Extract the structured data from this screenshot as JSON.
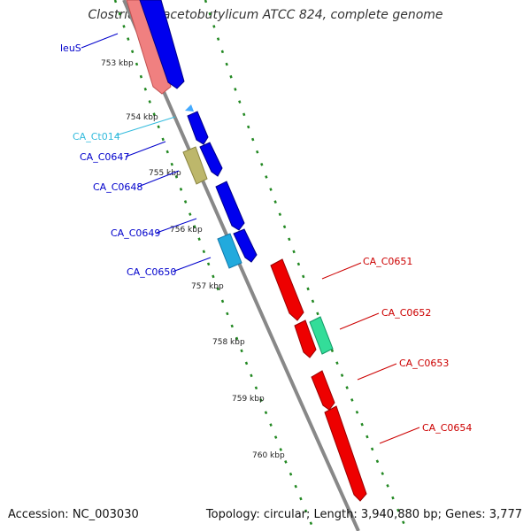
{
  "title": "Clostridium acetobutylicum ATCC 824, complete genome",
  "footer": {
    "accession": "Accession: NC_003030",
    "summary": "Topology: circular; Length: 3,940,880 bp; Genes: 3,777"
  },
  "ticks": [
    "753 kbp",
    "754 kbp",
    "755 kbp",
    "756 kbp",
    "757 kbp",
    "758 kbp",
    "759 kbp",
    "760 kbp"
  ],
  "genes": [
    {
      "id": "leuS",
      "color": "#0000cc",
      "feature_color": "#f08080",
      "feature_icon": "arrow-block-icon"
    },
    {
      "id": "CA_Ct014",
      "color": "#33bbdd",
      "feature_color": "#44aaff",
      "feature_icon": "trna-arrow-icon"
    },
    {
      "id": "CA_C0647",
      "color": "#0000cc",
      "feature_color": "#0000ee",
      "feature_icon": "arrow-block-icon"
    },
    {
      "id": "CA_C0648",
      "color": "#0000cc",
      "feature_color": "#bdb76b",
      "feature_icon": "arrow-block-icon"
    },
    {
      "id": "CA_C0649",
      "color": "#0000cc",
      "feature_color": "#0000ee",
      "feature_icon": "arrow-block-icon"
    },
    {
      "id": "CA_C0650",
      "color": "#0000cc",
      "feature_color": "#22aadd",
      "feature_icon": "arrow-block-icon"
    },
    {
      "id": "CA_C0651",
      "color": "#cc0000",
      "feature_color": "#ee0000",
      "feature_icon": "arrow-block-icon"
    },
    {
      "id": "CA_C0652",
      "color": "#cc0000",
      "feature_color": "#33dd99",
      "feature_icon": "arrow-block-icon"
    },
    {
      "id": "CA_C0653",
      "color": "#cc0000",
      "feature_color": "#ee0000",
      "feature_icon": "arrow-block-icon"
    },
    {
      "id": "CA_C0654",
      "color": "#cc0000",
      "feature_color": "#ee0000",
      "feature_icon": "arrow-block-icon"
    }
  ],
  "colors": {
    "backbone": "#888888",
    "tick_dots": "#228822"
  }
}
